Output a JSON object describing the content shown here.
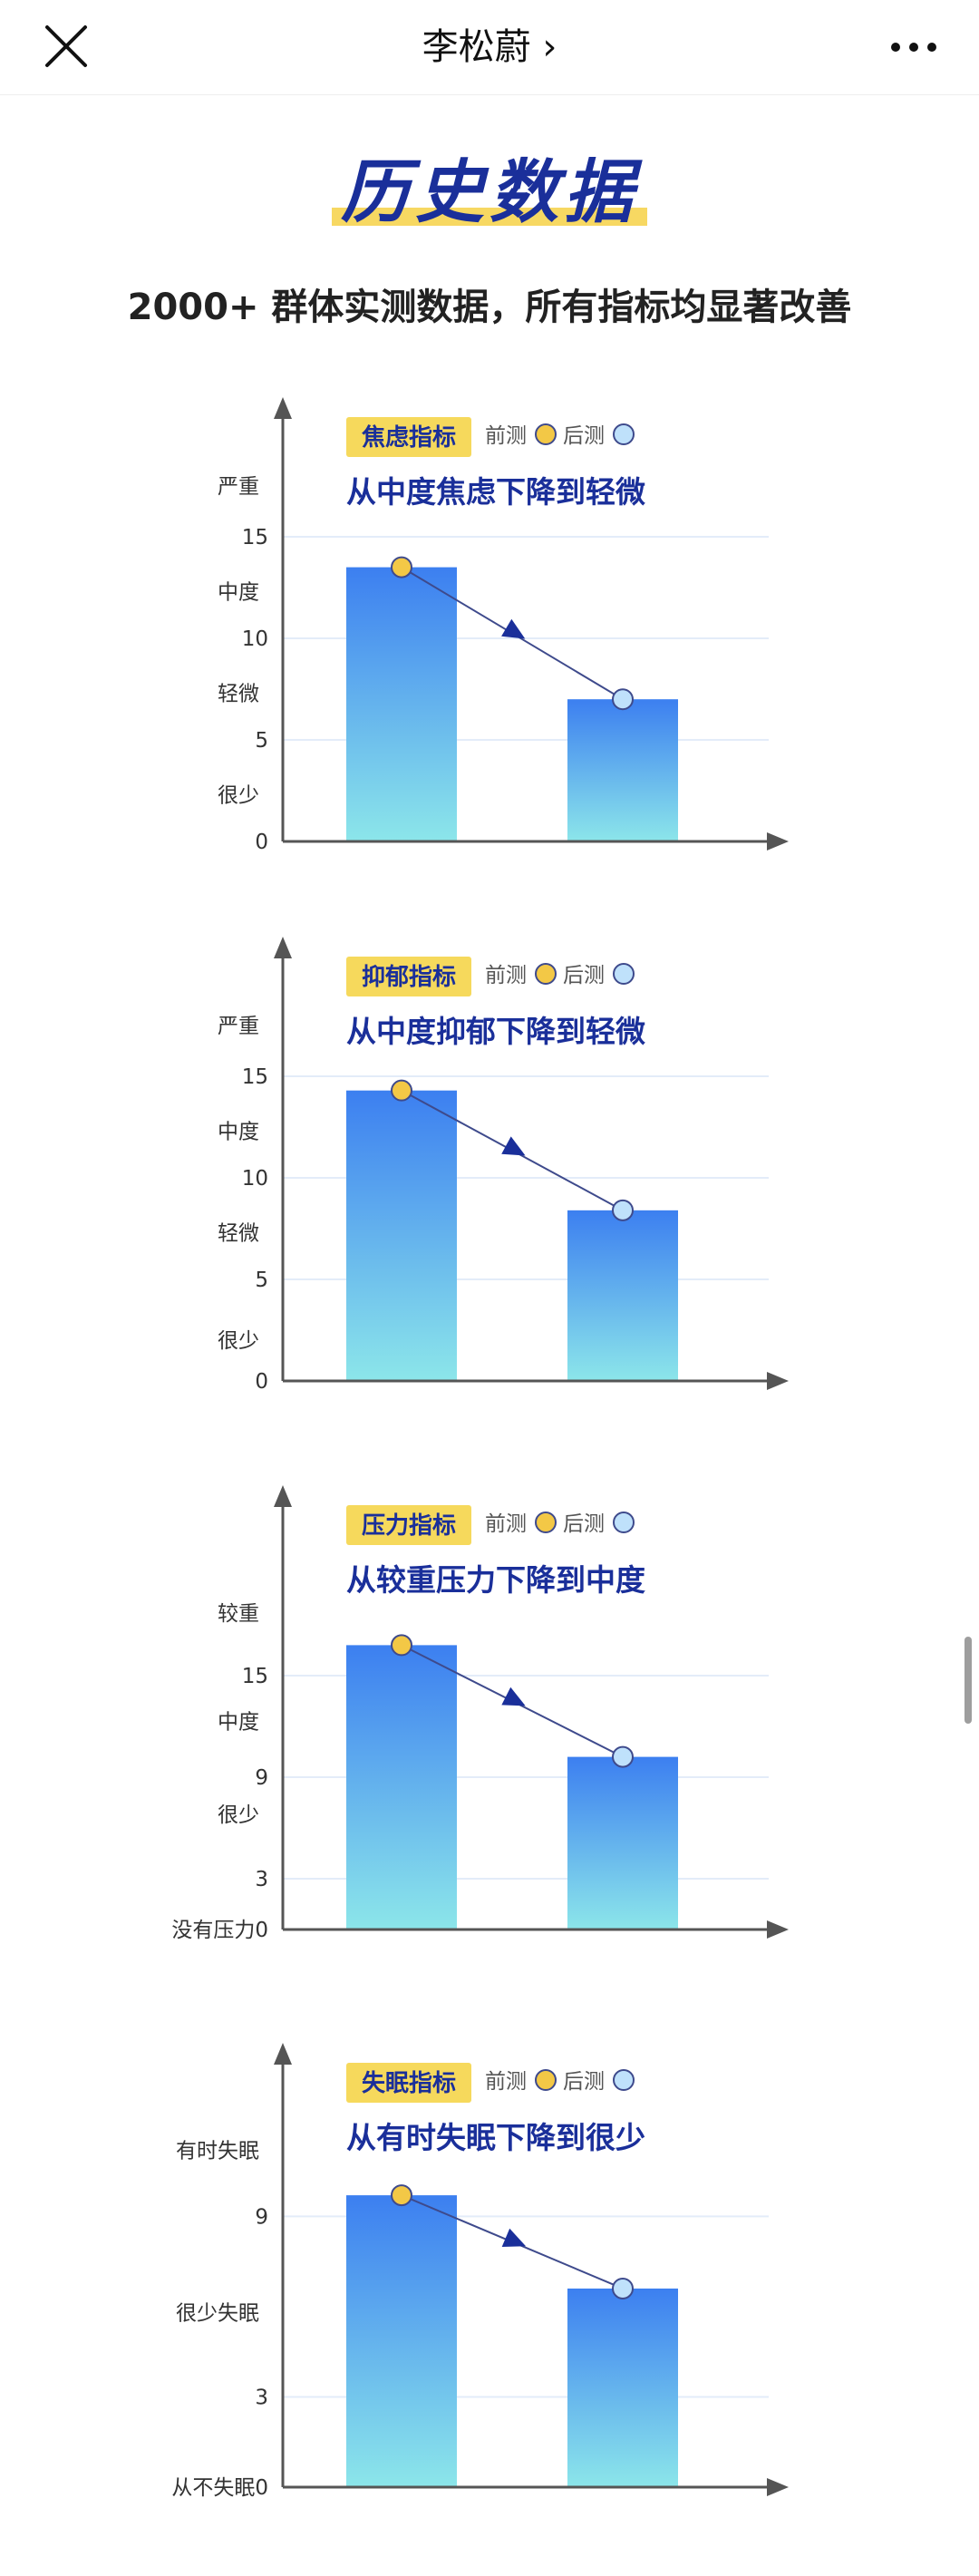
{
  "nav": {
    "title": "李松蔚",
    "chevron": "›",
    "close_icon": "close-icon",
    "more_icon": "more-dots-icon"
  },
  "headline": "历史数据",
  "subtitle": "2000+ 群体实测数据，所有指标均显著改善",
  "colors": {
    "title_blue": "#1a2f9a",
    "tag_yellow": "#f6d95c",
    "bar_top": "#3c7ff0",
    "bar_bottom": "#8ce6ea",
    "marker_before": "#f3c846",
    "marker_after": "#bfe1fb",
    "line": "#3e4a8c",
    "arrow": "#1a2f9a"
  },
  "legend": {
    "before_label": "前测",
    "after_label": "后测"
  },
  "chart_data": [
    {
      "type": "bar",
      "tag": "焦虑指标",
      "title": "从中度焦虑下降到轻微",
      "categories": [
        "前测",
        "后测"
      ],
      "values": [
        13.5,
        7
      ],
      "ylim": [
        0,
        20
      ],
      "yticks": [
        {
          "value": 0,
          "label": "0"
        },
        {
          "value": 5,
          "label": "5"
        },
        {
          "value": 10,
          "label": "10"
        },
        {
          "value": 15,
          "label": "15"
        }
      ],
      "ylevels": [
        {
          "value": 2.3,
          "label": "很少"
        },
        {
          "value": 7.3,
          "label": "轻微"
        },
        {
          "value": 12.3,
          "label": "中度"
        },
        {
          "value": 17.5,
          "label": "严重"
        }
      ],
      "grid": true
    },
    {
      "type": "bar",
      "tag": "抑郁指标",
      "title": "从中度抑郁下降到轻微",
      "categories": [
        "前测",
        "后测"
      ],
      "values": [
        14.3,
        8.4
      ],
      "ylim": [
        0,
        20
      ],
      "yticks": [
        {
          "value": 0,
          "label": "0"
        },
        {
          "value": 5,
          "label": "5"
        },
        {
          "value": 10,
          "label": "10"
        },
        {
          "value": 15,
          "label": "15"
        }
      ],
      "ylevels": [
        {
          "value": 2,
          "label": "很少"
        },
        {
          "value": 7.3,
          "label": "轻微"
        },
        {
          "value": 12.3,
          "label": "中度"
        },
        {
          "value": 17.5,
          "label": "严重"
        }
      ],
      "grid": true
    },
    {
      "type": "bar",
      "tag": "压力指标",
      "title": "从较重压力下降到中度",
      "categories": [
        "前测",
        "后测"
      ],
      "values": [
        16.8,
        10.2
      ],
      "ylim": [
        0,
        24
      ],
      "yticks": [
        {
          "value": 0,
          "label": "没有压力0"
        },
        {
          "value": 3,
          "label": "3"
        },
        {
          "value": 9,
          "label": "9"
        },
        {
          "value": 15,
          "label": "15"
        }
      ],
      "ylevels": [
        {
          "value": 6.8,
          "label": "很少"
        },
        {
          "value": 12.3,
          "label": "中度"
        },
        {
          "value": 18.7,
          "label": "较重"
        }
      ],
      "grid": true
    },
    {
      "type": "bar",
      "tag": "失眠指标",
      "title": "从有时失眠下降到很少",
      "categories": [
        "前测",
        "后测"
      ],
      "values": [
        9.7,
        6.6
      ],
      "ylim": [
        0,
        13.5
      ],
      "yticks": [
        {
          "value": 0,
          "label": "从不失眠0"
        },
        {
          "value": 3,
          "label": "3"
        },
        {
          "value": 9,
          "label": "9"
        }
      ],
      "ylevels": [
        {
          "value": 5.8,
          "label": "很少失眠"
        },
        {
          "value": 11.2,
          "label": "有时失眠"
        }
      ],
      "grid": true
    }
  ]
}
